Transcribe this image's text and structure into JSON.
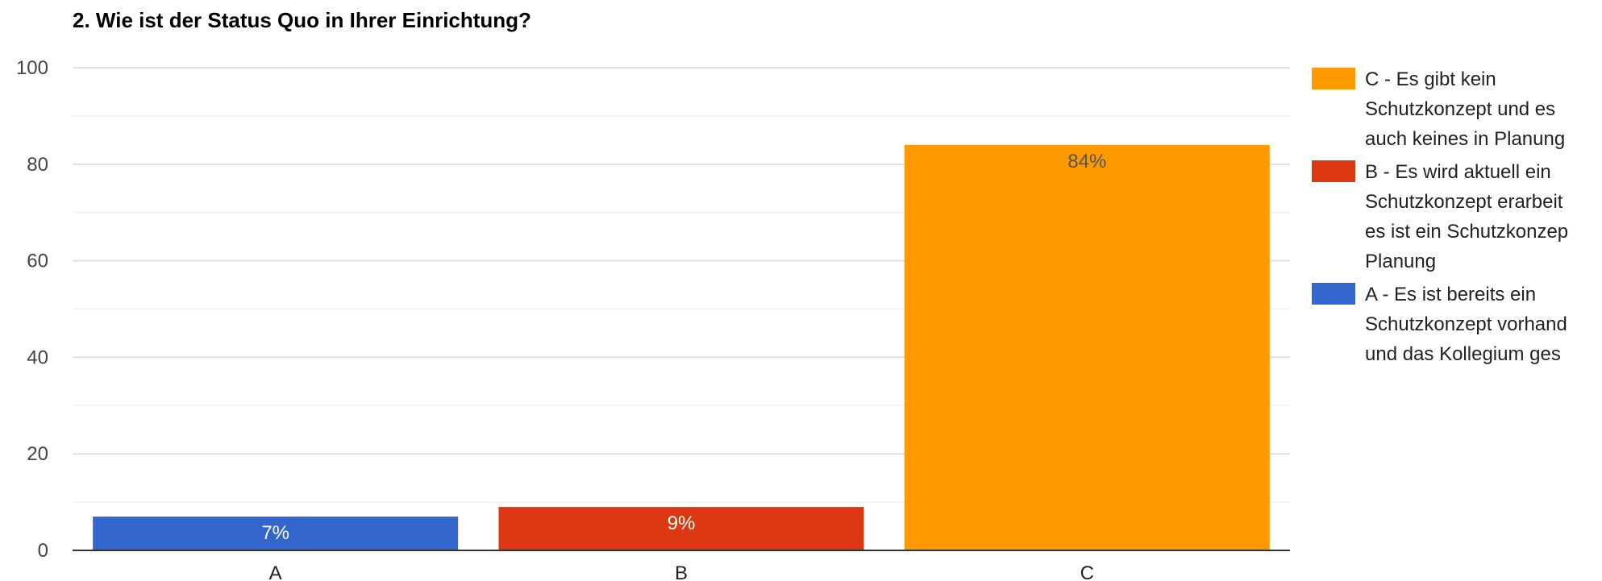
{
  "chart_data": {
    "type": "bar",
    "title": "2. Wie ist der Status Quo in Ihrer Einrichtung?",
    "xlabel": "",
    "ylabel": "",
    "categories": [
      "A",
      "B",
      "C"
    ],
    "values": [
      7,
      9,
      84
    ],
    "data_labels": [
      "7%",
      "9%",
      "84%"
    ],
    "colors": [
      "#3366cc",
      "#dc3912",
      "#ff9900"
    ],
    "ylim": [
      0,
      100
    ],
    "yticks": [
      "0",
      "20",
      "40",
      "60",
      "80",
      "100"
    ],
    "grid": true,
    "legend_position": "right",
    "legend": [
      {
        "category": "C",
        "color": "#ff9900",
        "lines": [
          "C - Es gibt kein",
          "Schutzkonzept und es",
          "auch keines in Planung"
        ]
      },
      {
        "category": "B",
        "color": "#dc3912",
        "lines": [
          "B - Es wird aktuell ein",
          "Schutzkonzept erarbeit",
          "es ist ein Schutzkonzep",
          "Planung"
        ]
      },
      {
        "category": "A",
        "color": "#3366cc",
        "lines": [
          "A - Es ist bereits ein",
          "Schutzkonzept vorhand",
          "und das Kollegium ges"
        ]
      }
    ]
  }
}
